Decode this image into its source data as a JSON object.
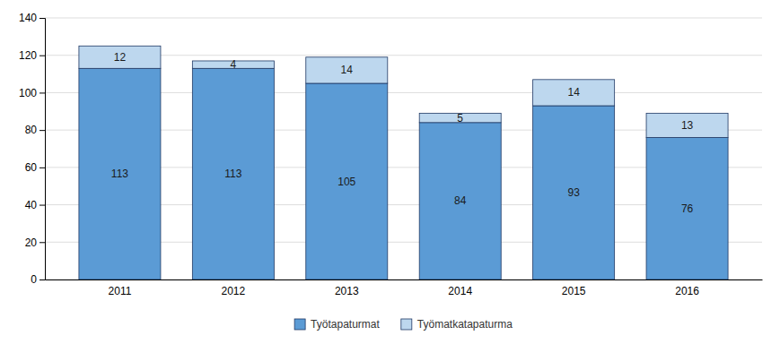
{
  "chart_data": {
    "type": "bar",
    "stacked": true,
    "categories": [
      "2011",
      "2012",
      "2013",
      "2014",
      "2015",
      "2016"
    ],
    "series": [
      {
        "name": "Työtapaturmat",
        "color": "#5B9BD5",
        "values": [
          113,
          113,
          105,
          84,
          93,
          76
        ]
      },
      {
        "name": "Työmatkatapaturma",
        "color": "#BDD7EE",
        "values": [
          12,
          4,
          14,
          5,
          14,
          13
        ]
      }
    ],
    "ylim": [
      0,
      140
    ],
    "yticks": [
      0,
      20,
      40,
      60,
      80,
      100,
      120,
      140
    ],
    "grid": true,
    "data_labels": true,
    "legend": "bottom"
  }
}
